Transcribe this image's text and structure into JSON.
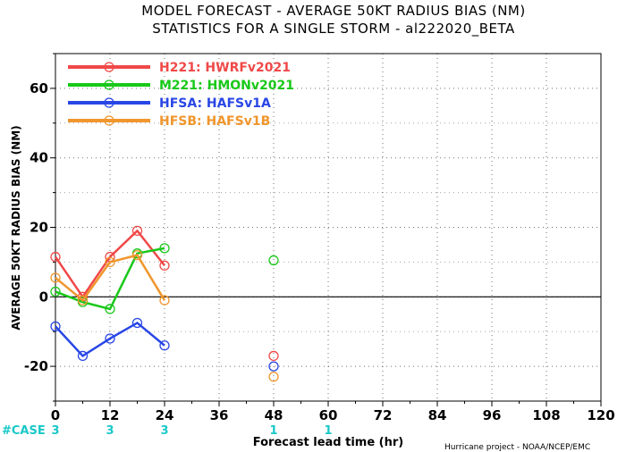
{
  "header": {
    "title_line1": "MODEL FORECAST - AVERAGE 50KT RADIUS BIAS (NM)",
    "title_line2": "STATISTICS FOR A SINGLE STORM - al222020_BETA"
  },
  "footer": {
    "case_label": "#CASE",
    "credit": "Hurricane project - NOAA/NCEP/EMC"
  },
  "colors": {
    "case_counts": "#19c8c8",
    "grid": "#000000",
    "zero_line": "#000000"
  },
  "chart_data": {
    "type": "line",
    "xlabel": "Forecast lead time (hr)",
    "ylabel": "AVERAGE 50KT RADIUS BIAS (NM)",
    "xlim": [
      0,
      120
    ],
    "ylim": [
      -30,
      70
    ],
    "xticks": [
      0,
      12,
      24,
      36,
      48,
      60,
      72,
      84,
      96,
      108,
      120
    ],
    "yticks": [
      -20,
      0,
      20,
      40,
      60
    ],
    "grid": true,
    "legend_position": "top-left",
    "case_counts": [
      {
        "x": 0,
        "label": "3"
      },
      {
        "x": 12,
        "label": "3"
      },
      {
        "x": 24,
        "label": "3"
      },
      {
        "x": 48,
        "label": "1"
      },
      {
        "x": 60,
        "label": "1"
      }
    ],
    "series": [
      {
        "name": "H221: HWRFv2021",
        "color": "#f04848",
        "line_x": [
          0,
          6,
          12,
          18,
          24
        ],
        "line_y": [
          11.5,
          0,
          11.5,
          19,
          9
        ],
        "isolated": [
          {
            "x": 48,
            "y": -17
          }
        ]
      },
      {
        "name": "M221: HMONv2021",
        "color": "#19c819",
        "line_x": [
          0,
          6,
          12,
          18,
          24
        ],
        "line_y": [
          1.5,
          -1.5,
          -3.5,
          12.5,
          14
        ],
        "isolated": [
          {
            "x": 48,
            "y": 10.5
          }
        ]
      },
      {
        "name": "HFSA: HAFSv1A",
        "color": "#2846e6",
        "line_x": [
          0,
          6,
          12,
          18,
          24
        ],
        "line_y": [
          -8.5,
          -17,
          -12,
          -7.5,
          -14
        ],
        "isolated": [
          {
            "x": 48,
            "y": -20
          }
        ]
      },
      {
        "name": "HFSB: HAFSv1B",
        "color": "#f0962d",
        "line_x": [
          0,
          6,
          12,
          18,
          24
        ],
        "line_y": [
          5.5,
          -1,
          10,
          12,
          -1
        ],
        "isolated": [
          {
            "x": 48,
            "y": -23
          }
        ]
      }
    ]
  }
}
